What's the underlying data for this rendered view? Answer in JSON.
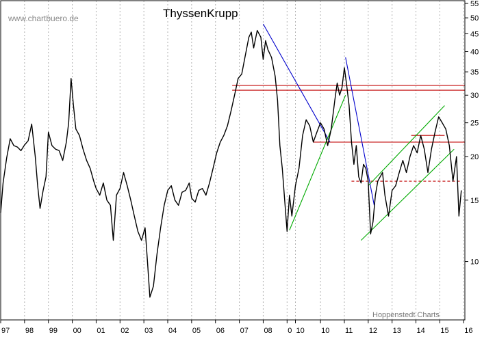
{
  "chart_data": {
    "type": "line",
    "title": "ThyssenKrupp",
    "watermark": "www.chartbuero.de",
    "credit": "Hoppenstedt Charts",
    "y_scale": "log",
    "ylim": [
      6.8,
      56
    ],
    "xlim": [
      1997.0,
      2016.45
    ],
    "y_ticks": [
      10,
      15,
      20,
      25,
      30,
      35,
      40,
      45,
      50,
      55
    ],
    "x_tick_labels": [
      {
        "x": 1997.0,
        "label": "97"
      },
      {
        "x": 1998.0,
        "label": "98"
      },
      {
        "x": 1999.0,
        "label": "99"
      },
      {
        "x": 2000.0,
        "label": "00"
      },
      {
        "x": 2001.0,
        "label": "01"
      },
      {
        "x": 2002.0,
        "label": "02"
      },
      {
        "x": 2003.0,
        "label": "03"
      },
      {
        "x": 2004.0,
        "label": "04"
      },
      {
        "x": 2005.0,
        "label": "05"
      },
      {
        "x": 2006.0,
        "label": "06"
      },
      {
        "x": 2007.0,
        "label": "07"
      },
      {
        "x": 2008.0,
        "label": "08"
      },
      {
        "x": 2009.0,
        "label": "0"
      },
      {
        "x": 2009.35,
        "label": "10"
      },
      {
        "x": 2010.4,
        "label": "10"
      },
      {
        "x": 2011.4,
        "label": "11"
      },
      {
        "x": 2012.4,
        "label": "12"
      },
      {
        "x": 2013.4,
        "label": "13"
      },
      {
        "x": 2014.4,
        "label": "14"
      },
      {
        "x": 2015.4,
        "label": "15"
      },
      {
        "x": 2016.4,
        "label": "16"
      }
    ],
    "grid": {
      "vertical": "dotted",
      "horizontal": false
    },
    "colors": {
      "price": "#000000",
      "resistance": "#c00000",
      "downtrend": "#0000cc",
      "uptrend": "#00aa00"
    },
    "series": [
      {
        "x": [
          1997.0,
          1997.1,
          1997.25,
          1997.4,
          1997.55,
          1997.7,
          1997.85,
          1998.0,
          1998.15,
          1998.3,
          1998.45,
          1998.55,
          1998.65,
          1998.78,
          1998.9,
          1999.0,
          1999.15,
          1999.3,
          1999.45,
          1999.6,
          1999.75,
          1999.85,
          1999.95,
          2000.05,
          2000.15,
          2000.3,
          2000.45,
          2000.6,
          2000.75,
          2000.9,
          2001.0,
          2001.15,
          2001.3,
          2001.45,
          2001.6,
          2001.72,
          2001.85,
          2002.0,
          2002.15,
          2002.3,
          2002.45,
          2002.6,
          2002.75,
          2002.9,
          2003.05,
          2003.15,
          2003.25,
          2003.4,
          2003.55,
          2003.7,
          2003.85,
          2004.0,
          2004.15,
          2004.3,
          2004.45,
          2004.6,
          2004.75,
          2004.9,
          2005.0,
          2005.15,
          2005.3,
          2005.45,
          2005.6,
          2005.75,
          2005.9,
          2006.05,
          2006.2,
          2006.35,
          2006.5,
          2006.65,
          2006.8,
          2006.95,
          2007.1,
          2007.25,
          2007.4,
          2007.5,
          2007.6,
          2007.75,
          2007.9,
          2008.0,
          2008.1,
          2008.2,
          2008.35,
          2008.5,
          2008.6,
          2008.7,
          2008.8,
          2008.9,
          2009.0,
          2009.1,
          2009.2,
          2009.35,
          2009.5,
          2009.65,
          2009.8,
          2009.95,
          2010.1,
          2010.25,
          2010.4,
          2010.55,
          2010.7,
          2010.85,
          2011.0,
          2011.1,
          2011.2,
          2011.3,
          2011.4,
          2011.5,
          2011.6,
          2011.7,
          2011.8,
          2011.9,
          2012.0,
          2012.1,
          2012.2,
          2012.3,
          2012.4,
          2012.5,
          2012.6,
          2012.7,
          2012.8,
          2012.9,
          2013.0,
          2013.1,
          2013.25,
          2013.4,
          2013.55,
          2013.7,
          2013.85,
          2014.0,
          2014.15,
          2014.3,
          2014.45,
          2014.6,
          2014.75,
          2014.9,
          2015.05,
          2015.2,
          2015.35,
          2015.5,
          2015.65,
          2015.8,
          2015.95,
          2016.1,
          2016.2,
          2016.3
        ],
        "y": [
          13.8,
          16.8,
          19.8,
          22.5,
          21.5,
          21.3,
          20.8,
          21.6,
          22.2,
          24.8,
          20.0,
          16.5,
          14.2,
          16.0,
          17.5,
          23.5,
          21.5,
          21.0,
          20.8,
          19.5,
          22.0,
          25.0,
          33.5,
          28.0,
          24.0,
          23.0,
          21.0,
          19.5,
          18.5,
          17.0,
          16.2,
          15.5,
          16.8,
          15.0,
          14.5,
          11.5,
          15.5,
          16.2,
          18.0,
          16.5,
          15.0,
          13.5,
          12.2,
          11.5,
          12.5,
          10.0,
          7.9,
          8.5,
          10.5,
          12.5,
          14.5,
          16.0,
          16.5,
          15.0,
          14.5,
          15.8,
          16.0,
          16.8,
          15.2,
          14.8,
          16.0,
          16.2,
          15.5,
          16.8,
          18.5,
          20.5,
          22.0,
          23.0,
          24.5,
          27.0,
          30.0,
          33.5,
          34.5,
          39.0,
          44.0,
          45.5,
          41.0,
          46.0,
          44.0,
          38.0,
          43.0,
          40.5,
          38.5,
          34.0,
          29.0,
          21.5,
          18.5,
          15.0,
          12.2,
          15.5,
          13.5,
          16.5,
          18.5,
          23.0,
          25.5,
          24.5,
          22.0,
          23.5,
          25.0,
          24.0,
          21.5,
          24.0,
          29.0,
          32.5,
          30.0,
          31.5,
          36.0,
          32.0,
          28.0,
          22.0,
          19.0,
          21.5,
          17.5,
          16.8,
          19.0,
          18.5,
          17.0,
          12.0,
          13.0,
          15.5,
          17.0,
          17.5,
          18.0,
          15.5,
          13.5,
          16.0,
          16.5,
          18.0,
          19.5,
          18.0,
          20.0,
          21.5,
          20.5,
          23.0,
          21.0,
          18.0,
          21.0,
          23.5,
          26.0,
          25.0,
          24.0,
          21.5,
          17.0,
          20.0,
          13.5,
          16.0
        ]
      }
    ],
    "horizontal_lines": [
      {
        "y": 32.0,
        "x": [
          2006.7,
          2016.45
        ],
        "color": "#c00000",
        "style": "solid"
      },
      {
        "y": 31.0,
        "x": [
          2006.7,
          2016.45
        ],
        "color": "#c00000",
        "style": "solid"
      },
      {
        "y": 22.0,
        "x": [
          2010.1,
          2016.45
        ],
        "color": "#c00000",
        "style": "solid"
      },
      {
        "y": 23.0,
        "x": [
          2014.2,
          2015.6
        ],
        "color": "#c00000",
        "style": "solid"
      },
      {
        "y": 17.0,
        "x": [
          2011.7,
          2016.3
        ],
        "color": "#c00000",
        "style": "dashed"
      }
    ],
    "trend_lines": [
      {
        "x": [
          2008.0,
          2010.8
        ],
        "y": [
          48.0,
          22.0
        ],
        "color": "#0000cc"
      },
      {
        "x": [
          2011.45,
          2012.65
        ],
        "y": [
          38.5,
          14.5
        ],
        "color": "#0000cc"
      },
      {
        "x": [
          2009.1,
          2011.45
        ],
        "y": [
          12.3,
          30.0
        ],
        "color": "#00aa00"
      },
      {
        "x": [
          2012.1,
          2016.0
        ],
        "y": [
          11.5,
          21.0
        ],
        "color": "#00aa00"
      },
      {
        "x": [
          2012.4,
          2015.6
        ],
        "y": [
          16.5,
          28.0
        ],
        "color": "#00aa00"
      }
    ]
  }
}
